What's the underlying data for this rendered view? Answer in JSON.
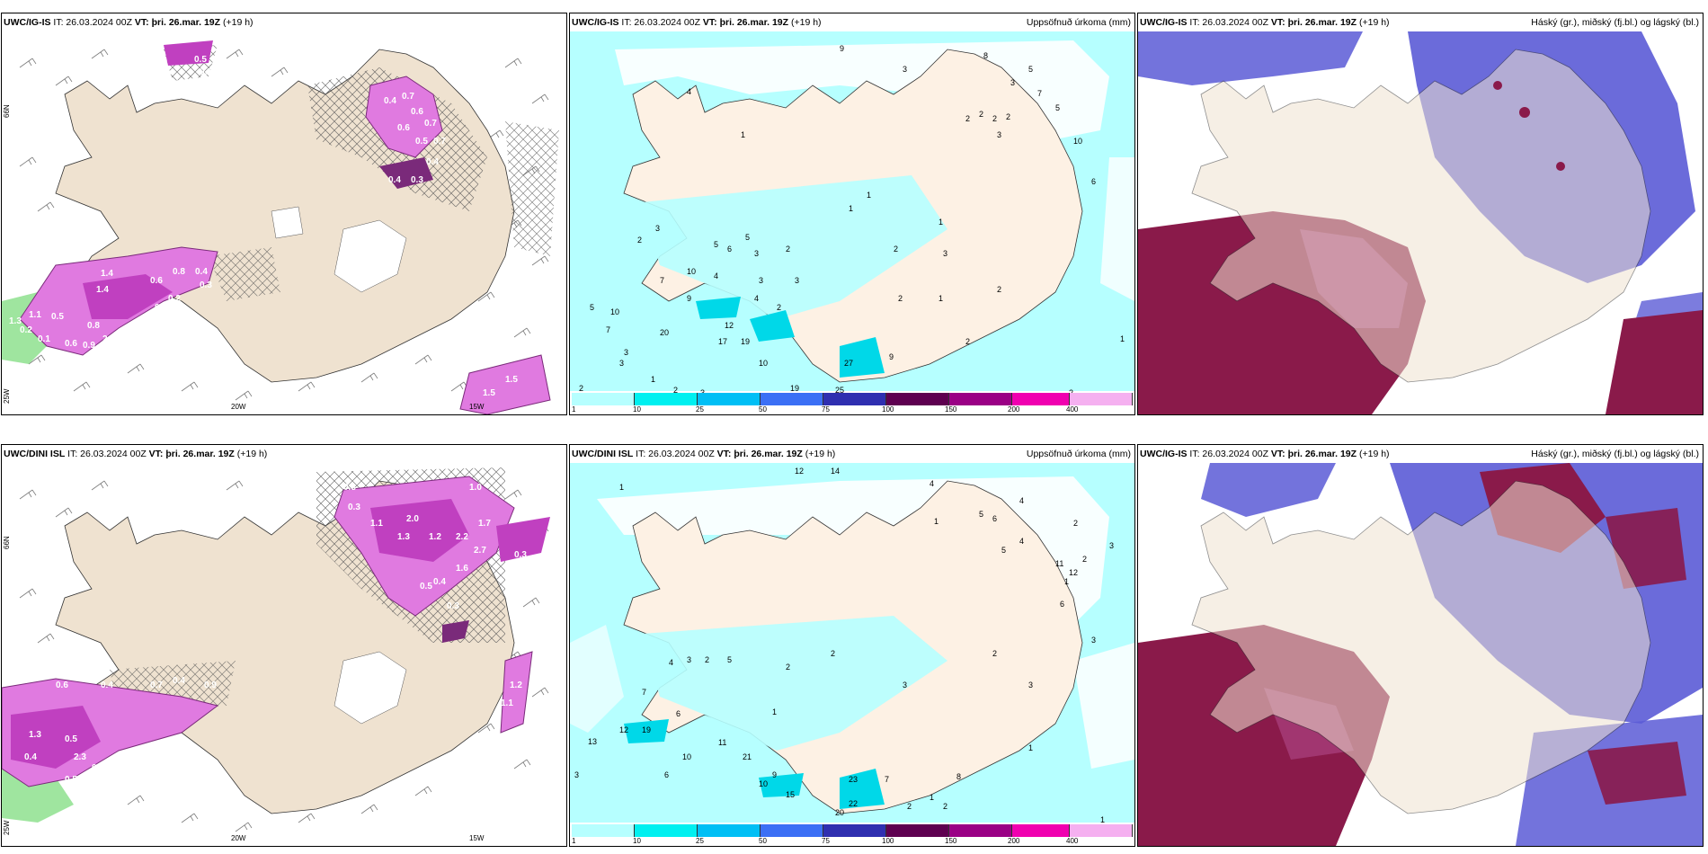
{
  "panels": [
    {
      "model": "UWC/IG-IS",
      "it": "IT: 26.03.2024 00Z",
      "vt_label": "VT:",
      "vt": "þri. 26.mar. 19Z",
      "lead": "(+19 h)",
      "right": ""
    },
    {
      "model": "UWC/IG-IS",
      "it": "IT: 26.03.2024 00Z",
      "vt_label": "VT:",
      "vt": "þri. 26.mar. 19Z",
      "lead": "(+19 h)",
      "right": "Uppsöfnuð úrkoma (mm)"
    },
    {
      "model": "UWC/IG-IS",
      "it": "IT: 26.03.2024 00Z",
      "vt_label": "VT:",
      "vt": "þri. 26.mar. 19Z",
      "lead": "(+19 h)",
      "right": "Háský (gr.), miðský (fj.bl.) og lágský (bl.)"
    },
    {
      "model": "UWC/DINI ISL",
      "it": "IT: 26.03.2024 00Z",
      "vt_label": "VT:",
      "vt": "þri. 26.mar. 19Z",
      "lead": "(+19 h)",
      "right": ""
    },
    {
      "model": "UWC/DINI ISL",
      "it": "IT: 26.03.2024 00Z",
      "vt_label": "VT:",
      "vt": "þri. 26.mar. 19Z",
      "lead": "(+19 h)",
      "right": "Uppsöfnuð úrkoma (mm)"
    },
    {
      "model": "UWC/IG-IS",
      "it": "IT: 26.03.2024 00Z",
      "vt_label": "VT:",
      "vt": "þri. 26.mar. 19Z",
      "lead": "(+19 h)",
      "right": "Háský (gr.), miðský (fj.bl.) og lágský (bl.)"
    }
  ],
  "axis": {
    "lat66": "66N",
    "lon25": "25W",
    "lon20": "20W",
    "lon15": "15W"
  },
  "precip_top": [
    "9",
    "3",
    "5",
    "8",
    "3",
    "4",
    "7",
    "5",
    "1",
    "2",
    "2",
    "2",
    "2",
    "3",
    "10",
    "6",
    "1",
    "1",
    "1",
    "2",
    "3",
    "5",
    "6",
    "5",
    "3",
    "2",
    "2",
    "3",
    "7",
    "10",
    "4",
    "9",
    "3",
    "3",
    "4",
    "2",
    "2",
    "1",
    "2",
    "5",
    "10",
    "7",
    "20",
    "12",
    "17",
    "19",
    "10",
    "27",
    "9",
    "25",
    "19",
    "2",
    "2",
    "2",
    "3",
    "1",
    "3",
    "3",
    "1",
    "2"
  ],
  "precip_bottom": [
    "12",
    "14",
    "1",
    "4",
    "5",
    "6",
    "4",
    "1",
    "2",
    "5",
    "4",
    "4",
    "3",
    "2",
    "5",
    "7",
    "6",
    "19",
    "12",
    "13",
    "3",
    "11",
    "10",
    "21",
    "6",
    "10",
    "9",
    "15",
    "22",
    "20",
    "23",
    "7",
    "2",
    "2",
    "1",
    "8",
    "1",
    "3",
    "3",
    "1",
    "2",
    "11",
    "12",
    "6",
    "3",
    "3",
    "1",
    "2",
    "2",
    "2",
    "1"
  ],
  "precip_legend": {
    "labels": [
      "1",
      "10",
      "25",
      "50",
      "75",
      "100",
      "150",
      "200",
      "400"
    ],
    "colors": [
      "#b6ffff",
      "#00f0f0",
      "#00bff5",
      "#3b6ff5",
      "#2f2fb0",
      "#5e0050",
      "#9a0085",
      "#f000b0",
      "#f5b0f0"
    ]
  },
  "wind_top": [
    "0.5",
    "0.5",
    "0.4",
    "0.7",
    "0.6",
    "0.7",
    "0.6",
    "0.5",
    "0.7",
    "0.4",
    "0.3",
    "0.4",
    "1.4",
    "1.4",
    "0.8",
    "0.6",
    "0.4",
    "0.3",
    "0.2",
    "0.3",
    "0.5",
    "1.1",
    "1.3",
    "0.8",
    "2.0",
    "0.6",
    "0.9",
    "0.2",
    "0.1",
    "1.5",
    "1.5"
  ],
  "wind_bottom": [
    "0.3",
    "0.3",
    "1.0",
    "2.0",
    "1.7",
    "2.2",
    "2.7",
    "1.1",
    "1.3",
    "1.2",
    "1.6",
    "0.3",
    "0.5",
    "0.4",
    "0.3",
    "0.8",
    "0.6",
    "0.4",
    "0.7",
    "0.4",
    "0.9",
    "1.3",
    "0.5",
    "2.3",
    "0.8",
    "0.4",
    "0.5",
    "1.2",
    "1.1"
  ],
  "colors": {
    "land": "#efe2d0",
    "ocean": "#ffffff",
    "precip_light": "#b6ffff",
    "pink": "#e07ae0",
    "magenta": "#c040c0",
    "deep_purple": "#7a2a7a",
    "green": "#8ee08e",
    "cloud_blue": "#5b5bd6",
    "cloud_maroon": "#8a1a4a"
  }
}
